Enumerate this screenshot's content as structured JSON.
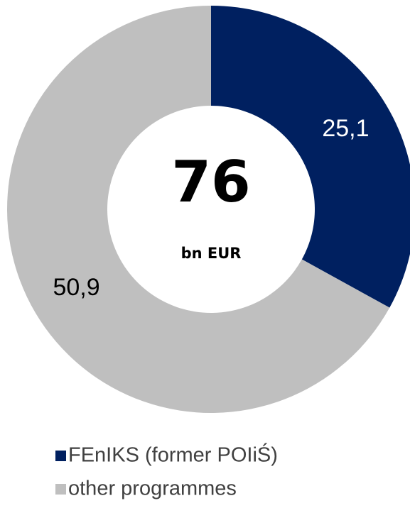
{
  "chart_data": {
    "type": "donut",
    "categories": [
      "FEnIKS (former POIiŚ)",
      "other programmes"
    ],
    "values": [
      25.1,
      50.9
    ],
    "value_labels": [
      "25,1",
      "50,9"
    ],
    "colors": [
      "#002060",
      "#bfbfbf"
    ],
    "label_colors": [
      "#ffffff",
      "#000000"
    ],
    "center_value": "76",
    "center_unit": "bn EUR",
    "legend": "bottom"
  }
}
